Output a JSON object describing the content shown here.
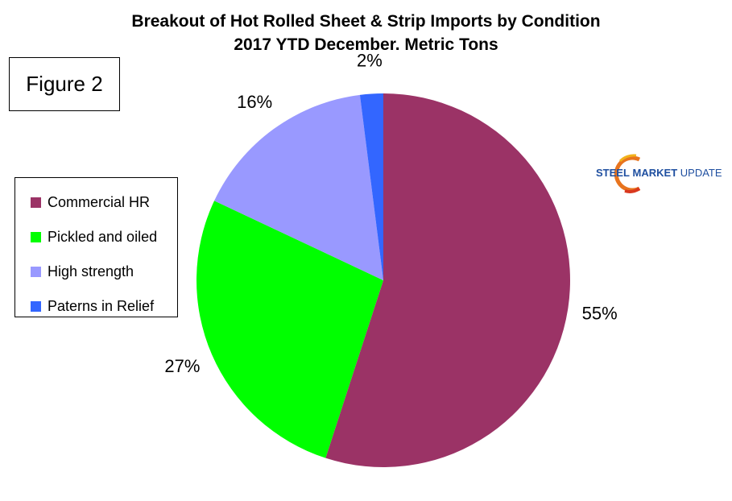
{
  "figure_label": "Figure 2",
  "logo": {
    "word1": "STEEL",
    "word2": "MARKET",
    "word3": "UPDATE"
  },
  "colors": {
    "commercial_hr": "#9B3366",
    "pickled_and_oiled": "#00FF00",
    "high_strength": "#9999FF",
    "paterns_in_relief": "#3366FF"
  },
  "chart_data": {
    "type": "pie",
    "title_line1": "Breakout of Hot Rolled Sheet & Strip Imports by Condition",
    "title_line2": "2017 YTD December. Metric Tons",
    "legend_position": "left",
    "categories": [
      "Commercial HR",
      "Pickled and oiled",
      "High strength",
      "Paterns in Relief"
    ],
    "values": [
      55,
      27,
      16,
      2
    ],
    "value_labels": [
      "55%",
      "27%",
      "16%",
      "2%"
    ],
    "colors": [
      "#9B3366",
      "#00FF00",
      "#9999FF",
      "#3366FF"
    ]
  }
}
